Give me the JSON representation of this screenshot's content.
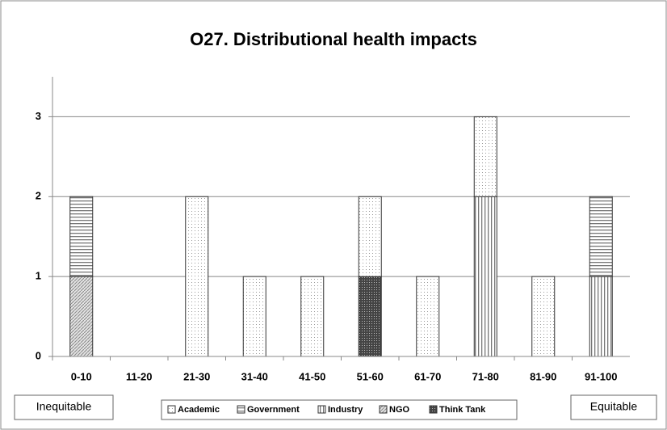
{
  "chart_data": {
    "type": "stacked_bar",
    "title": "O27. Distributional health impacts",
    "categories": [
      "0-10",
      "11-20",
      "21-30",
      "31-40",
      "41-50",
      "51-60",
      "61-70",
      "71-80",
      "81-90",
      "91-100"
    ],
    "series": [
      {
        "name": "Academic",
        "values": [
          0,
          0,
          2,
          1,
          1,
          1,
          1,
          1,
          1,
          0
        ]
      },
      {
        "name": "Government",
        "values": [
          1,
          0,
          0,
          0,
          0,
          0,
          0,
          0,
          0,
          1
        ]
      },
      {
        "name": "Industry",
        "values": [
          0,
          0,
          0,
          0,
          0,
          0,
          0,
          2,
          0,
          1
        ]
      },
      {
        "name": "NGO",
        "values": [
          1,
          0,
          0,
          0,
          0,
          0,
          0,
          0,
          0,
          0
        ]
      },
      {
        "name": "Think Tank",
        "values": [
          0,
          0,
          0,
          0,
          0,
          1,
          0,
          0,
          0,
          0
        ]
      }
    ],
    "ylim": [
      0,
      3.5
    ],
    "yticks": [
      0,
      1,
      2,
      3
    ],
    "grid": true,
    "annotations": [
      "Inequitable",
      "Equitable"
    ]
  }
}
